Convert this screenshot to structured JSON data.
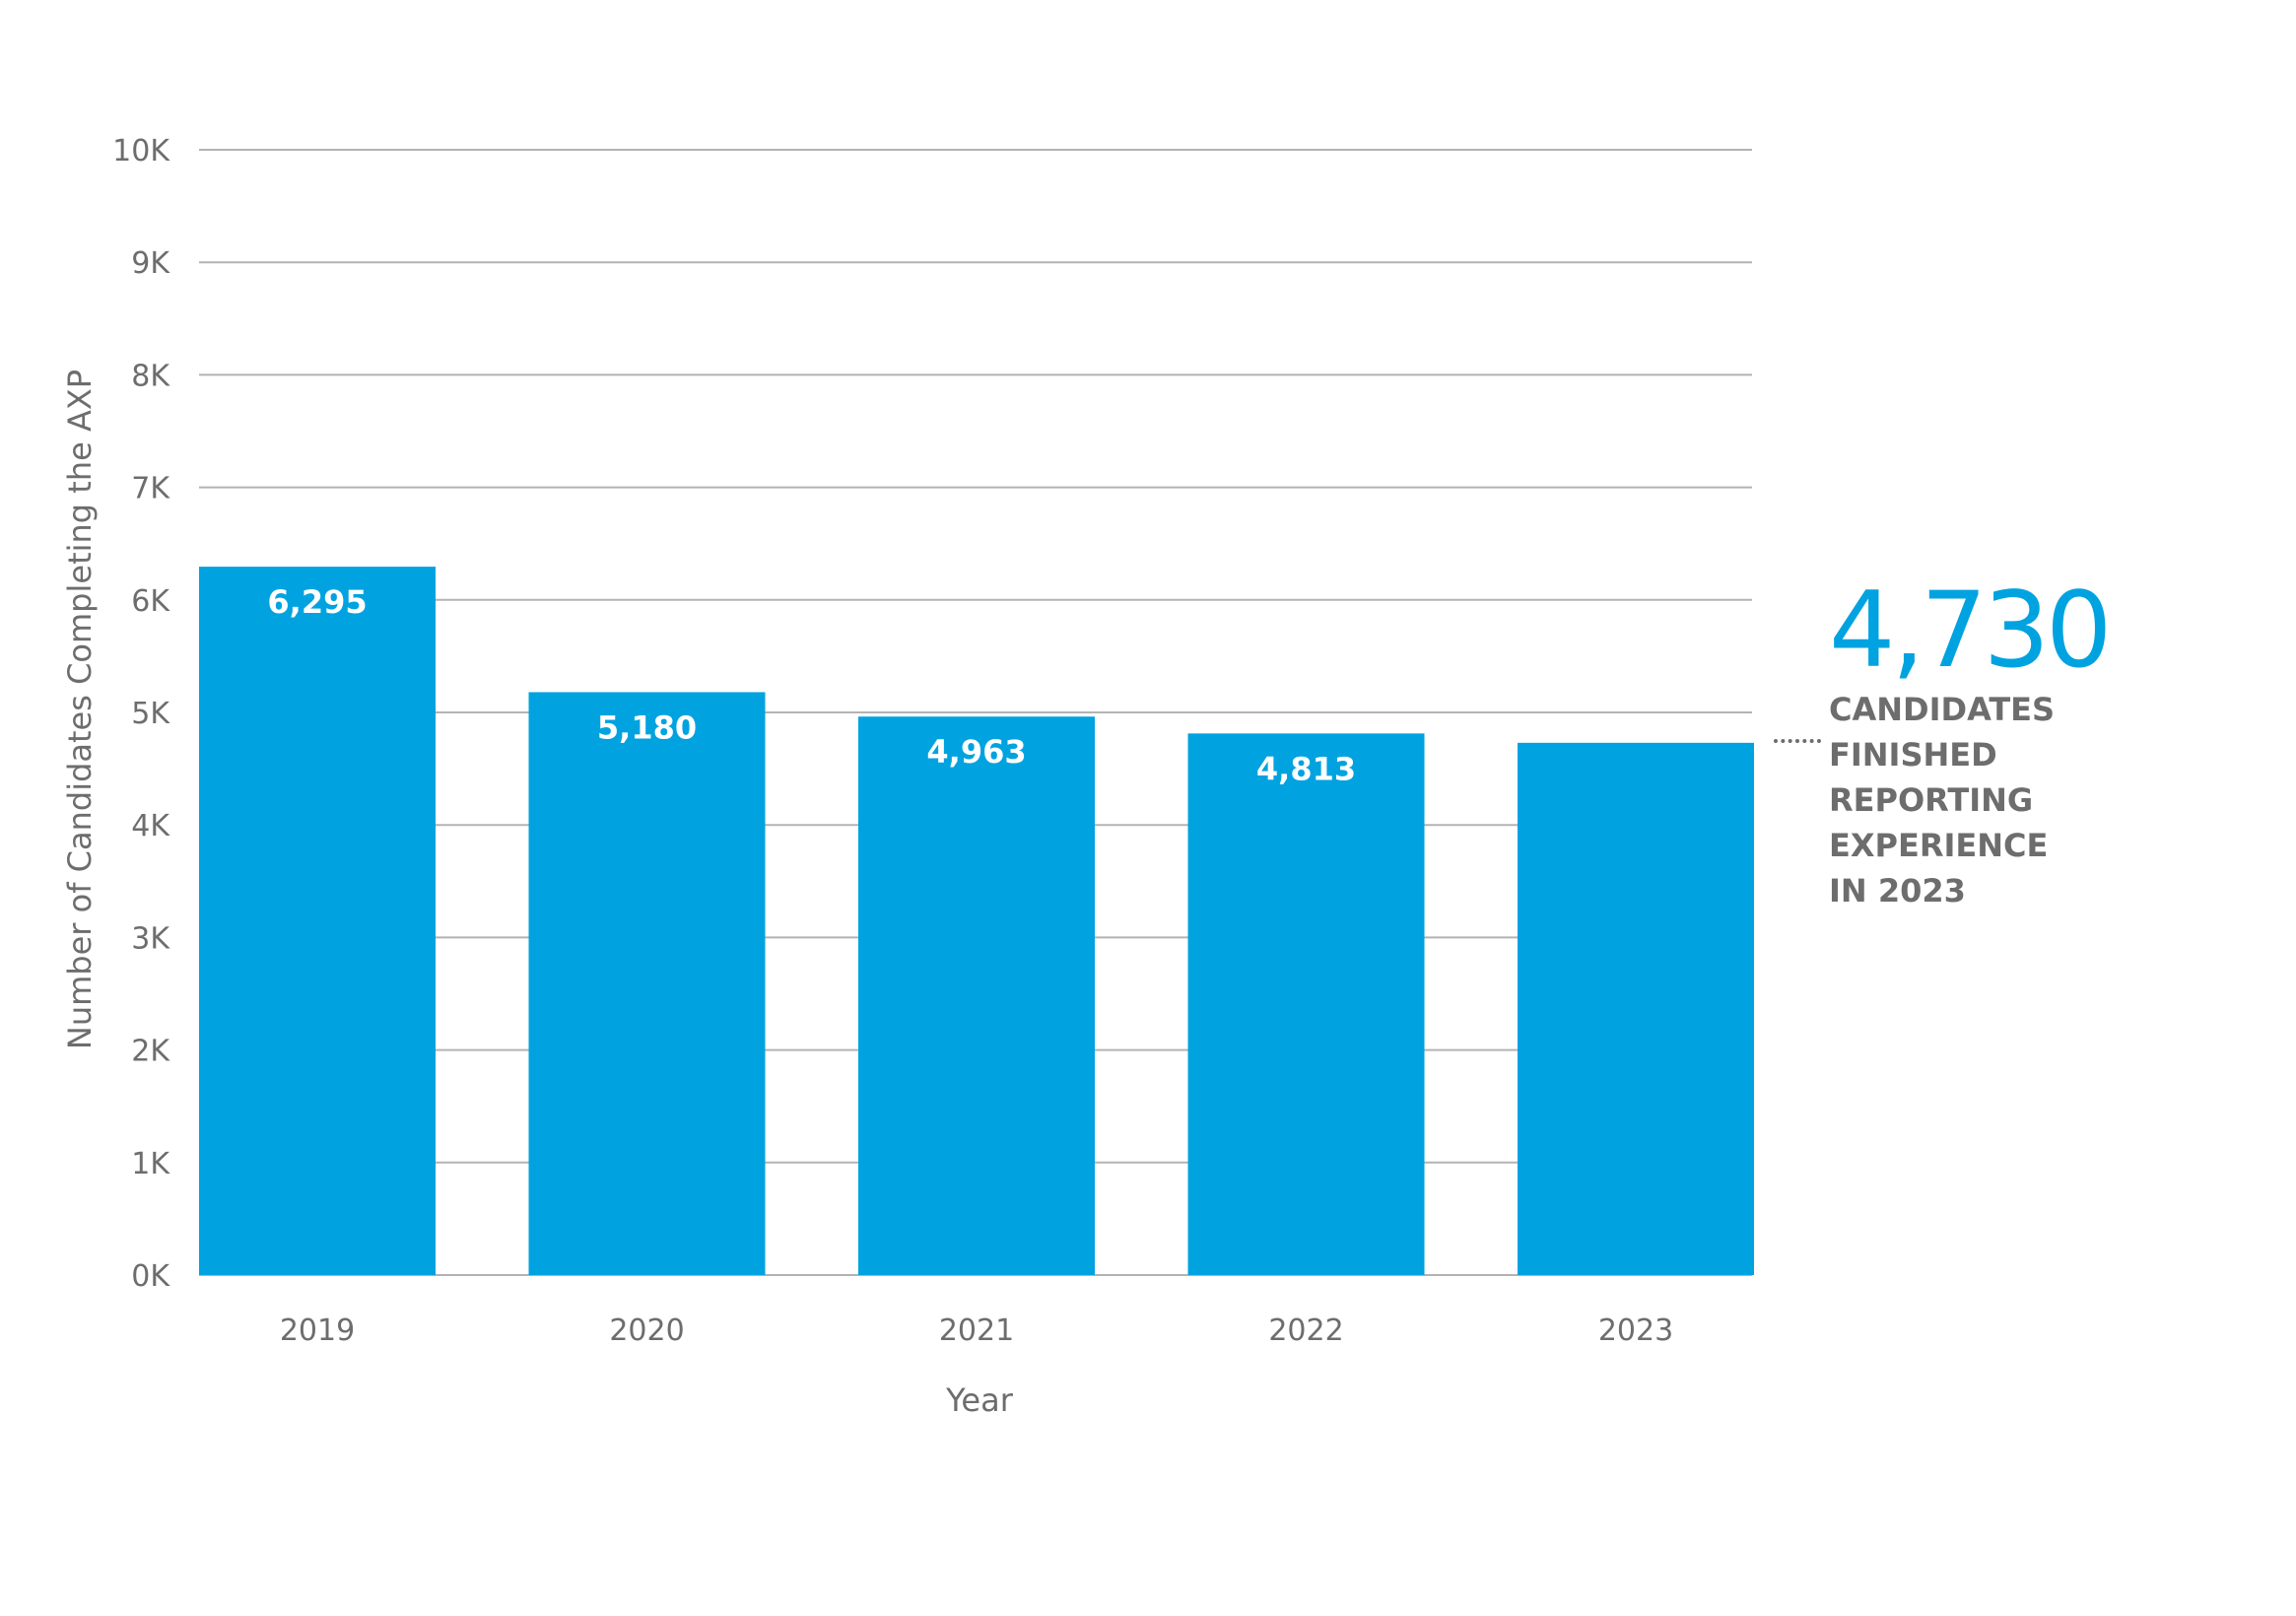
{
  "chart_data": {
    "type": "bar",
    "categories": [
      "2019",
      "2020",
      "2021",
      "2022",
      "2023"
    ],
    "values": [
      6295,
      5180,
      4963,
      4813,
      4730
    ],
    "value_labels": [
      "6,295",
      "5,180",
      "4,963",
      "4,813",
      ""
    ],
    "xlabel": "Year",
    "ylabel": "Number of Candidates Completing the AXP",
    "ylim": [
      0,
      10000
    ],
    "yticks": [
      0,
      1000,
      2000,
      3000,
      4000,
      5000,
      6000,
      7000,
      8000,
      9000,
      10000
    ],
    "ytick_labels": [
      "0K",
      "1K",
      "2K",
      "3K",
      "4K",
      "5K",
      "6K",
      "7K",
      "8K",
      "9K",
      "10K"
    ],
    "grid": true,
    "bar_color": "#00a3e0"
  },
  "callout": {
    "value": "4,730",
    "lines": [
      "CANDIDATES",
      "FINISHED",
      "REPORTING",
      "EXPERIENCE",
      "IN 2023"
    ]
  }
}
